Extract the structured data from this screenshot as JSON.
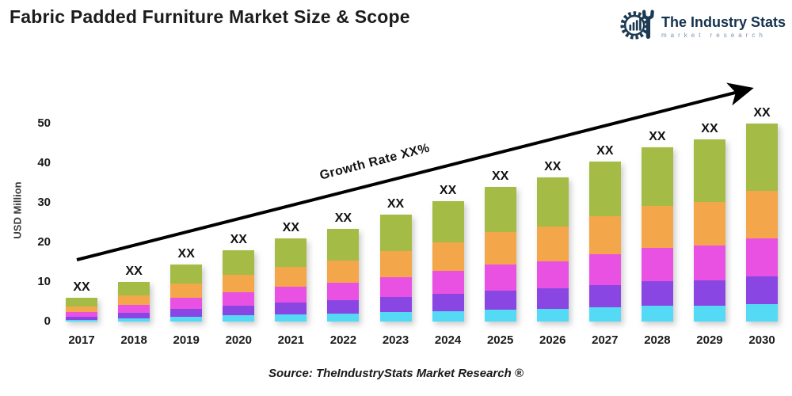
{
  "header": {
    "title": "Fabric Padded Furniture Market Size & Scope"
  },
  "logo": {
    "name": "The Industry Stats",
    "tagline": "market research",
    "color": "#14324e"
  },
  "chart_data": {
    "type": "bar",
    "stacked": true,
    "title": "Fabric Padded Furniture Market Size & Scope",
    "ylabel": "USD Million",
    "xlabel": "",
    "ylim": [
      0,
      50
    ],
    "yticks": [
      0,
      10,
      20,
      30,
      40,
      50
    ],
    "grid": false,
    "legend": "none",
    "bar_label": "XX",
    "annotation": "Growth Rate XX%",
    "categories": [
      "2017",
      "2018",
      "2019",
      "2020",
      "2021",
      "2022",
      "2023",
      "2024",
      "2025",
      "2026",
      "2027",
      "2028",
      "2029",
      "2030"
    ],
    "totals": [
      6,
      10,
      14.5,
      18,
      21,
      23.5,
      27,
      30.5,
      34,
      36.5,
      40.5,
      44,
      46,
      50
    ],
    "series": [
      {
        "name": "segment-cyan",
        "color": "#55daf5",
        "values": [
          0.5,
          0.9,
          1.3,
          1.6,
          1.9,
          2.1,
          2.4,
          2.7,
          3.1,
          3.3,
          3.6,
          4.0,
          4.1,
          4.5
        ]
      },
      {
        "name": "segment-purple",
        "color": "#8a46e3",
        "values": [
          0.8,
          1.4,
          2.0,
          2.5,
          2.9,
          3.3,
          3.8,
          4.3,
          4.8,
          5.1,
          5.7,
          6.2,
          6.4,
          7.0
        ]
      },
      {
        "name": "segment-magenta",
        "color": "#e951e3",
        "values": [
          1.1,
          1.9,
          2.8,
          3.4,
          4.0,
          4.5,
          5.1,
          5.8,
          6.5,
          6.9,
          7.7,
          8.4,
          8.7,
          9.5
        ]
      },
      {
        "name": "segment-orange",
        "color": "#f3a64a",
        "values": [
          1.4,
          2.4,
          3.5,
          4.3,
          5.0,
          5.6,
          6.5,
          7.3,
          8.2,
          8.8,
          9.7,
          10.6,
          11.0,
          12.0
        ]
      },
      {
        "name": "segment-green",
        "color": "#a4bc45",
        "values": [
          2.2,
          3.4,
          4.9,
          6.2,
          7.2,
          8.0,
          9.2,
          10.4,
          11.4,
          12.4,
          13.8,
          14.8,
          15.8,
          17.0
        ]
      }
    ]
  },
  "footer": {
    "source": "Source: TheIndustryStats Market Research ®"
  }
}
